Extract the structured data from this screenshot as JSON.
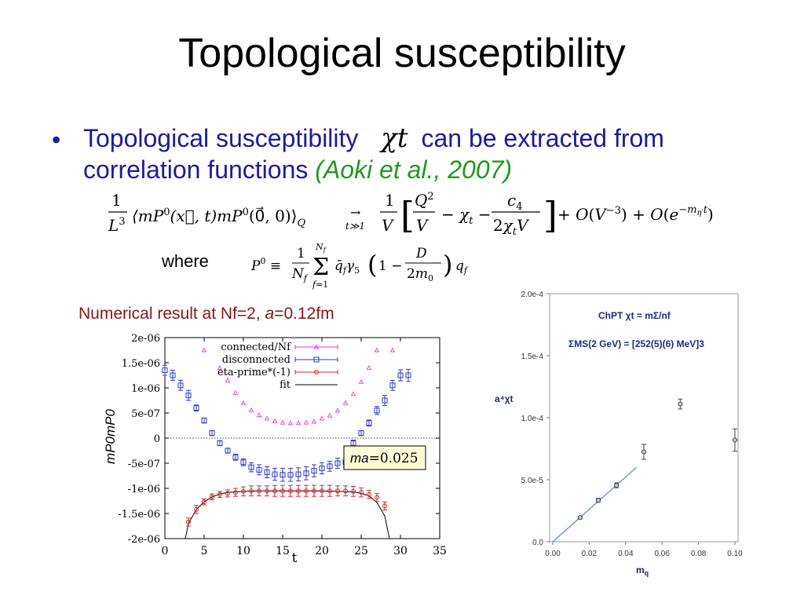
{
  "title": "Topological susceptibility",
  "bullet": {
    "marker": "•",
    "line1_pre": "Topological susceptibility",
    "symbol": "χt",
    "line1_post": "can be extracted from",
    "line2": "correlation functions",
    "citation": "(Aoki et al., 2007)"
  },
  "equation1": "(1/L³)⟨mP⁰(x⃗,t) mP⁰(0⃗,0)⟩_Q  →(t≫1)  (1/V)[Q²/V − χ_t − c₄/(2χ_t V)] + O(V⁻³) + O(e^(−m_η′ t))",
  "where_label": "where",
  "equation2": "P⁰ ≡ (1/N_f) Σ_{f=1}^{N_f} q̄_f γ₅ (1 − D/(2m₀)) q_f",
  "numerical_label": "Numerical result at Nf=2, a=0.12fm",
  "numerical_label_parts": {
    "pre": "Numerical result at Nf=2, ",
    "a": "a",
    "post": "=0.12fm"
  },
  "colors": {
    "bullet": "#1a1aa8",
    "citation": "#1e9a1e",
    "numerical": "#8b1515",
    "connected": "#ee33dd",
    "disconnected": "#2a3ad8",
    "etaprime": "#dd2a2a",
    "fit": "#000000",
    "linefit": "#5b8fe0"
  },
  "chart_data": [
    {
      "type": "scatter",
      "xlabel": "t",
      "ylabel": "mP0mP0",
      "xlim": [
        0,
        35
      ],
      "ylim": [
        -2e-06,
        2e-06
      ],
      "xticks": [
        "0",
        "5",
        "10",
        "15",
        "20",
        "25",
        "30",
        "35"
      ],
      "yticks": [
        "2e-06",
        "1.5e-06",
        "1e-06",
        "5e-07",
        "0",
        "-5e-07",
        "-1e-06",
        "-1.5e-06",
        "-2e-06"
      ],
      "annotation": {
        "ma": "ma",
        "value": "=0.025"
      },
      "legend": {
        "placement": "top-right",
        "entries": [
          "connected/Nf",
          "disconnected",
          "eta-prime*(-1)",
          "fit"
        ]
      },
      "series": [
        {
          "name": "connected/Nf",
          "marker": "triangle",
          "x": [
            5,
            7,
            8,
            9,
            10,
            11,
            12,
            13,
            14,
            15,
            16,
            17,
            18,
            19,
            20,
            21,
            22,
            23,
            24,
            25,
            26,
            27,
            29
          ],
          "y": [
            1.75e-06,
            1.4e-06,
            1.15e-06,
            9e-07,
            7e-07,
            5.6e-07,
            4.6e-07,
            3.9e-07,
            3.4e-07,
            3.1e-07,
            3e-07,
            3e-07,
            3.1e-07,
            3.3e-07,
            3.9e-07,
            4.5e-07,
            5.5e-07,
            7e-07,
            8.8e-07,
            1.12e-06,
            1.4e-06,
            1.75e-06,
            1.75e-06
          ]
        },
        {
          "name": "disconnected",
          "marker": "square",
          "x": [
            0,
            1,
            2,
            3,
            4,
            5,
            6,
            7,
            8,
            9,
            10,
            11,
            12,
            13,
            14,
            15,
            16,
            17,
            18,
            19,
            20,
            21,
            22,
            23,
            24,
            25,
            26,
            27,
            28,
            29,
            30,
            31
          ],
          "y": [
            1.35e-06,
            1.25e-06,
            1.05e-06,
            8.5e-07,
            6e-07,
            3.5e-07,
            1e-07,
            -1e-07,
            -2.5e-07,
            -3.8e-07,
            -4.8e-07,
            -5.8e-07,
            -6.3e-07,
            -6.8e-07,
            -7.2e-07,
            -7.3e-07,
            -7.3e-07,
            -7.2e-07,
            -7e-07,
            -6.5e-07,
            -6e-07,
            -5.6e-07,
            -5e-07,
            -4.8e-07,
            -1e-07,
            1e-07,
            3e-07,
            5.5e-07,
            7.5e-07,
            1.05e-06,
            1.25e-06,
            1.25e-06
          ],
          "err": [
            1e-07,
            1e-07,
            1e-07,
            1e-07,
            6e-08,
            5e-08,
            5e-08,
            5e-08,
            5e-08,
            6e-08,
            7e-08,
            9e-08,
            1e-07,
            1.1e-07,
            1.2e-07,
            1.3e-07,
            1.3e-07,
            1.3e-07,
            1.3e-07,
            1.2e-07,
            1.1e-07,
            1e-07,
            1e-07,
            9e-08,
            6e-08,
            5e-08,
            6e-08,
            8e-08,
            1e-07,
            1e-07,
            1.1e-07,
            1.2e-07
          ]
        },
        {
          "name": "eta-prime*(-1)",
          "marker": "circle",
          "x": [
            3,
            4,
            5,
            6,
            7,
            8,
            9,
            10,
            11,
            12,
            13,
            14,
            15,
            16,
            17,
            18,
            19,
            20,
            21,
            22,
            23,
            24,
            25,
            26,
            27,
            28
          ],
          "y": [
            -1.67e-06,
            -1.42e-06,
            -1.27e-06,
            -1.17e-06,
            -1.12e-06,
            -1.1e-06,
            -1.08e-06,
            -1.06e-06,
            -1.05e-06,
            -1.05e-06,
            -1.05e-06,
            -1.05e-06,
            -1.05e-06,
            -1.05e-06,
            -1.05e-06,
            -1.05e-06,
            -1.05e-06,
            -1.05e-06,
            -1.05e-06,
            -1.05e-06,
            -1.05e-06,
            -1.06e-06,
            -1.08e-06,
            -1.12e-06,
            -1.18e-06,
            -1.35e-06
          ],
          "err": [
            8e-08,
            8e-08,
            6e-08,
            6e-08,
            6e-08,
            7e-08,
            8e-08,
            9e-08,
            1e-07,
            1e-07,
            1e-07,
            1.1e-07,
            1.1e-07,
            1.1e-07,
            1.1e-07,
            1.1e-07,
            1.1e-07,
            1.1e-07,
            1.1e-07,
            1e-07,
            1e-07,
            1e-07,
            9e-08,
            8e-08,
            8e-08,
            8e-08
          ]
        },
        {
          "name": "fit",
          "marker": "line",
          "x": [
            2.6,
            3,
            4,
            5,
            6,
            7,
            8,
            10,
            12,
            14,
            16,
            18,
            20,
            22,
            24,
            25,
            26,
            27,
            28,
            28.6
          ],
          "y": [
            -2e-06,
            -1.7e-06,
            -1.42e-06,
            -1.27e-06,
            -1.17e-06,
            -1.11e-06,
            -1.08e-06,
            -1.06e-06,
            -1.05e-06,
            -1.05e-06,
            -1.05e-06,
            -1.05e-06,
            -1.05e-06,
            -1.06e-06,
            -1.07e-06,
            -1.1e-06,
            -1.15e-06,
            -1.28e-06,
            -1.55e-06,
            -2e-06
          ]
        }
      ]
    },
    {
      "type": "scatter",
      "xlabel": "mq",
      "ylabel": "a⁴χt",
      "xlim": [
        0,
        0.1
      ],
      "ylim": [
        0,
        0.0002
      ],
      "xticks": [
        "0.00",
        "0.02",
        "0.04",
        "0.06",
        "0.08",
        "0.10"
      ],
      "yticks": [
        "2.0e-4",
        "1.5e-4",
        "1.0e-4",
        "5.0e-5",
        "0.0"
      ],
      "annotations": [
        "ChPT   χt = mΣ/nf",
        "ΣMS(2 GeV) = [252(5)(6) MeV]3"
      ],
      "series": [
        {
          "name": "data",
          "x": [
            0.015,
            0.025,
            0.035,
            0.05,
            0.07,
            0.1
          ],
          "y": [
            1.95e-05,
            3.35e-05,
            4.55e-05,
            7.25e-05,
            0.000111,
            8.2e-05
          ],
          "err": [
            1e-06,
            1.5e-06,
            2e-06,
            6e-06,
            4e-06,
            9e-06
          ]
        },
        {
          "name": "ChPT fit",
          "x": [
            0,
            0.046
          ],
          "y": [
            0,
            6e-05
          ]
        }
      ]
    }
  ]
}
